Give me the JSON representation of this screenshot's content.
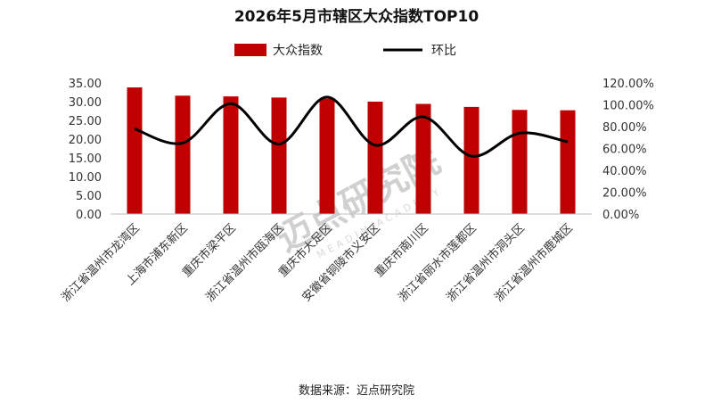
{
  "chart_data": {
    "type": "bar",
    "title": "2026年5月市辖区大众指数TOP10",
    "categories": [
      "浙江省温州市龙湾区",
      "上海市浦东新区",
      "重庆市梁平区",
      "浙江省温州市瓯海区",
      "重庆市大足区",
      "安徽省铜陵市义安区",
      "重庆市南川区",
      "浙江省丽水市莲都区",
      "浙江省温州市洞头区",
      "浙江省温州市鹿城区"
    ],
    "series": [
      {
        "name": "大众指数",
        "type": "bar",
        "axis": "left",
        "color": "#c00000",
        "values": [
          33.8,
          31.6,
          31.4,
          31.1,
          30.8,
          30.0,
          29.4,
          28.6,
          27.8,
          27.7
        ]
      },
      {
        "name": "环比",
        "type": "line",
        "axis": "right",
        "color": "#000000",
        "values": [
          78,
          65,
          101,
          64,
          107,
          63,
          89,
          53,
          74,
          66
        ]
      }
    ],
    "y_left": {
      "min": 0,
      "max": 35,
      "step": 5,
      "ticks": [
        "0.00",
        "5.00",
        "10.00",
        "15.00",
        "20.00",
        "25.00",
        "30.00",
        "35.00"
      ]
    },
    "y_right": {
      "min": 0,
      "max": 120,
      "step": 20,
      "ticks": [
        "0.00%",
        "20.00%",
        "40.00%",
        "60.00%",
        "80.00%",
        "100.00%",
        "120.00%"
      ]
    },
    "grid": false,
    "legend": "top-center"
  },
  "source": "数据来源：迈点研究院",
  "watermark": {
    "text": "迈点研究院",
    "sub": "MEADIN ACADEMY"
  }
}
